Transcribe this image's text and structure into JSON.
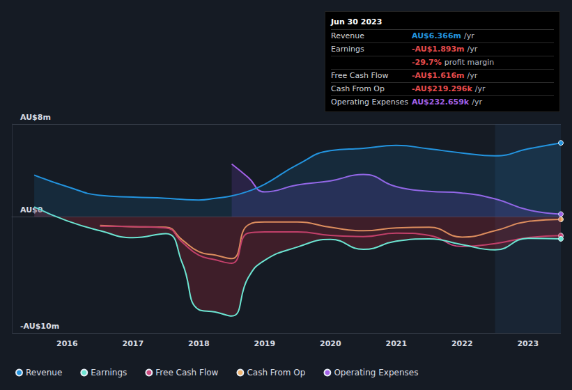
{
  "chart_data": {
    "type": "line",
    "x": [
      2015.5,
      2016,
      2016.5,
      2017,
      2017.5,
      2017.75,
      2018,
      2018.25,
      2018.5,
      2018.75,
      2019,
      2019.5,
      2020,
      2020.5,
      2021,
      2021.5,
      2022,
      2022.5,
      2023,
      2023.5
    ],
    "xlim": [
      2015.16,
      2023.5
    ],
    "xticks": [
      2016,
      2017,
      2018,
      2019,
      2020,
      2021,
      2022,
      2023
    ],
    "ylim": [
      -10,
      8
    ],
    "yticks": [
      {
        "value": -10,
        "label": "-AU$10m"
      },
      {
        "value": 0,
        "label": "AU$0"
      },
      {
        "value": 8,
        "label": "AU$8m"
      }
    ],
    "grid": true,
    "legend": "bottom-left",
    "series": [
      {
        "name": "Revenue",
        "color": "#2394df",
        "values": [
          3.6,
          2.6,
          1.85,
          1.7,
          1.6,
          1.5,
          1.45,
          1.6,
          1.8,
          2.2,
          2.8,
          4.5,
          5.7,
          5.9,
          6.15,
          5.85,
          5.5,
          5.25,
          5.85,
          6.366
        ]
      },
      {
        "name": "Earnings",
        "color": "#6ce5d2",
        "values": [
          0.85,
          -0.35,
          -1.2,
          -1.8,
          -1.45,
          -4.0,
          -8.0,
          -8.2,
          -8.55,
          -5.25,
          -3.75,
          -2.6,
          -1.95,
          -2.8,
          -2.1,
          -1.9,
          -2.4,
          -2.85,
          -1.85,
          -1.893
        ]
      },
      {
        "name": "Free Cash Flow",
        "color": "#cc4a7f",
        "values": [
          null,
          null,
          -0.8,
          -0.85,
          -0.95,
          -2.2,
          -3.3,
          -3.7,
          -4.0,
          -1.4,
          -1.3,
          -1.3,
          -1.6,
          -1.7,
          -1.4,
          -1.6,
          -2.55,
          -2.3,
          -1.8,
          -1.616
        ]
      },
      {
        "name": "Cash From Op",
        "color": "#f0b46e",
        "values": [
          null,
          null,
          -0.75,
          -0.85,
          -0.9,
          -2.0,
          -3.0,
          -3.3,
          -3.6,
          -0.7,
          -0.45,
          -0.45,
          -0.9,
          -1.2,
          -0.95,
          -0.9,
          -1.75,
          -1.2,
          -0.4,
          -0.219
        ]
      },
      {
        "name": "Operating Expenses",
        "color": "#a361e8",
        "values": [
          null,
          null,
          null,
          null,
          null,
          null,
          null,
          null,
          4.55,
          3.4,
          2.15,
          2.75,
          3.1,
          3.65,
          2.6,
          2.2,
          2.05,
          1.55,
          0.6,
          0.233
        ]
      }
    ],
    "info_box": {
      "title": "Jun 30 2023",
      "rows": [
        {
          "label": "Revenue",
          "value": "AU$6.366m",
          "unit": "/yr",
          "color": "#2394df"
        },
        {
          "label": "Earnings",
          "value": "-AU$1.893m",
          "unit": "/yr",
          "color": "#e64b4b"
        },
        {
          "value": "-29.7%",
          "unit": "profit margin",
          "color": "#e64b4b"
        },
        {
          "label": "Free Cash Flow",
          "value": "-AU$1.616m",
          "unit": "/yr",
          "color": "#e64b4b"
        },
        {
          "label": "Cash From Op",
          "value": "-AU$219.296k",
          "unit": "/yr",
          "color": "#e64b4b"
        },
        {
          "label": "Operating Expenses",
          "value": "AU$232.659k",
          "unit": "/yr",
          "color": "#a361e8"
        }
      ]
    }
  }
}
